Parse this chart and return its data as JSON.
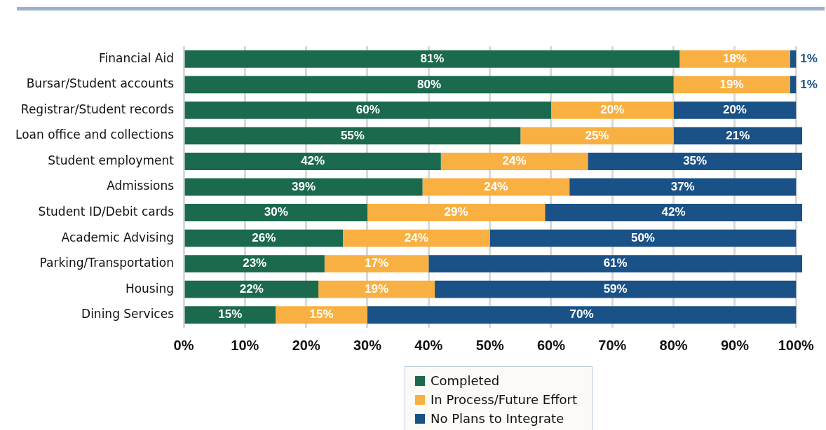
{
  "chart_data": {
    "type": "bar",
    "orientation": "horizontal",
    "stacked": true,
    "grid": "x",
    "legend": "bottom",
    "categories": [
      "Financial Aid",
      "Bursar/Student accounts",
      "Registrar/Student records",
      "Loan office and collections",
      "Student employment",
      "Admissions",
      "Student ID/Debit cards",
      "Academic Advising",
      "Parking/Transportation",
      "Housing",
      "Dining Services"
    ],
    "series": [
      {
        "name": "Completed",
        "color": "#1b6a4e",
        "values": [
          81,
          80,
          60,
          55,
          42,
          39,
          30,
          26,
          23,
          22,
          15
        ],
        "value_labels": [
          "81%",
          "80%",
          "60%",
          "55%",
          "42%",
          "39%",
          "30%",
          "26%",
          "23%",
          "22%",
          "15%"
        ]
      },
      {
        "name": "In Process/Future Effort",
        "color": "#f9b042",
        "values": [
          18,
          19,
          20,
          25,
          24,
          24,
          29,
          24,
          17,
          19,
          15
        ],
        "value_labels": [
          "18%",
          "19%",
          "20%",
          "25%",
          "24%",
          "24%",
          "29%",
          "24%",
          "17%",
          "19%",
          "15%"
        ]
      },
      {
        "name": "No Plans to Integrate",
        "color": "#1a5187",
        "values": [
          1,
          1,
          20,
          21,
          35,
          37,
          42,
          50,
          61,
          59,
          70
        ],
        "value_labels": [
          "1%",
          "1%",
          "20%",
          "21%",
          "35%",
          "37%",
          "42%",
          "50%",
          "61%",
          "59%",
          "70%"
        ]
      }
    ],
    "xlim": [
      0,
      101
    ],
    "xticks": [
      {
        "value": 0,
        "label": "0%"
      },
      {
        "value": 10,
        "label": "10%"
      },
      {
        "value": 20,
        "label": "20%"
      },
      {
        "value": 30,
        "label": "30%"
      },
      {
        "value": 40,
        "label": "40%"
      },
      {
        "value": 50,
        "label": "50%"
      },
      {
        "value": 60,
        "label": "60%"
      },
      {
        "value": 70,
        "label": "70%"
      },
      {
        "value": 80,
        "label": "80%"
      },
      {
        "value": 90,
        "label": "90%"
      },
      {
        "value": 100,
        "label": "100%"
      }
    ]
  }
}
